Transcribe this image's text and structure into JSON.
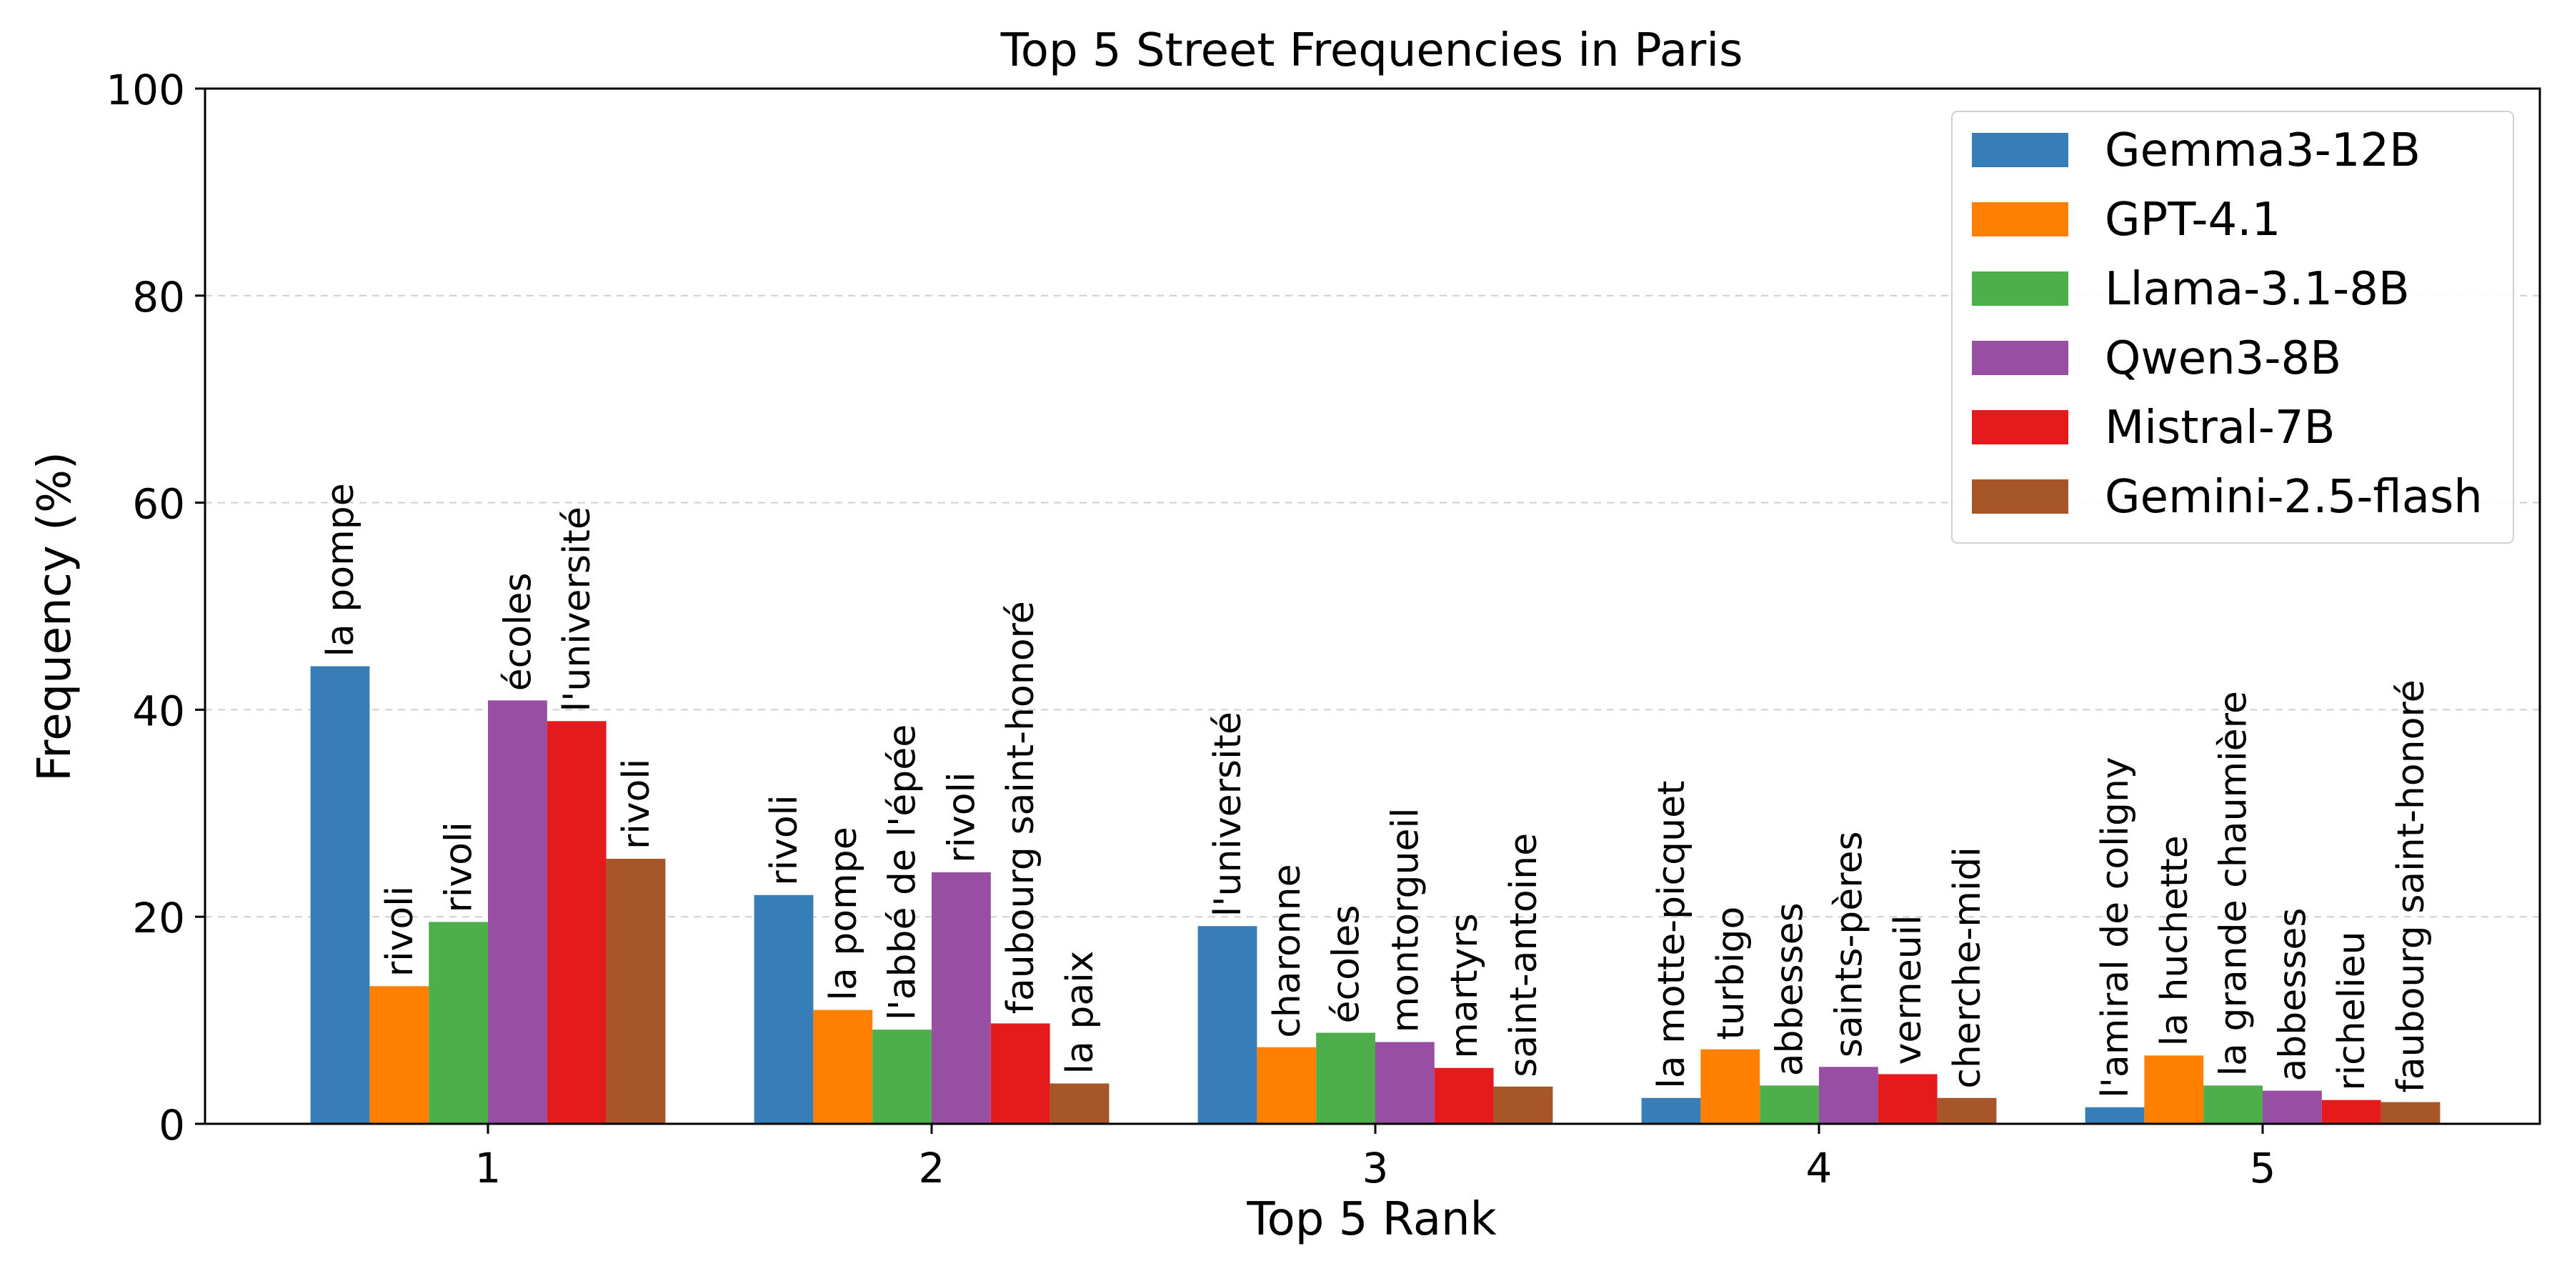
{
  "chart_data": {
    "type": "bar",
    "title": "Top 5 Street Frequencies in Paris",
    "xlabel": "Top 5 Rank",
    "ylabel": "Frequency (%)",
    "categories": [
      "1",
      "2",
      "3",
      "4",
      "5"
    ],
    "ylim": [
      0,
      100
    ],
    "yticks": [
      "0",
      "20",
      "40",
      "60",
      "80",
      "100"
    ],
    "grid": "y-dashed",
    "legend_position": "top-right",
    "series": [
      {
        "name": "Gemma3-12B",
        "color": "#377eb8",
        "values": [
          44.2,
          22.1,
          19.1,
          2.5,
          1.6
        ],
        "labels": [
          "la pompe",
          "rivoli",
          "l'université",
          "la motte-picquet",
          "l'amiral de coligny"
        ]
      },
      {
        "name": "GPT-4.1",
        "color": "#ff7f00",
        "values": [
          13.3,
          11.0,
          7.4,
          7.2,
          6.6
        ],
        "labels": [
          "rivoli",
          "la pompe",
          "charonne",
          "turbigo",
          "la huchette"
        ]
      },
      {
        "name": "Llama-3.1-8B",
        "color": "#4daf4a",
        "values": [
          19.5,
          9.1,
          8.8,
          3.7,
          3.7
        ],
        "labels": [
          "rivoli",
          "l'abbé de l'épée",
          "écoles",
          "abbesses",
          "la grande chaumière"
        ]
      },
      {
        "name": "Qwen3-8B",
        "color": "#984ea3",
        "values": [
          40.9,
          24.3,
          7.9,
          5.5,
          3.2
        ],
        "labels": [
          "écoles",
          "rivoli",
          "montorgueil",
          "saints-pères",
          "abbesses"
        ]
      },
      {
        "name": "Mistral-7B",
        "color": "#e41a1c",
        "values": [
          38.9,
          9.7,
          5.4,
          4.8,
          2.3
        ],
        "labels": [
          "l'université",
          "faubourg saint-honoré",
          "martyrs",
          "verneuil",
          "richelieu"
        ]
      },
      {
        "name": "Gemini-2.5-flash",
        "color": "#a65628",
        "values": [
          25.6,
          3.9,
          3.6,
          2.5,
          2.1
        ],
        "labels": [
          "rivoli",
          "la paix",
          "saint-antoine",
          "cherche-midi",
          "faubourg saint-honoré"
        ]
      }
    ]
  }
}
